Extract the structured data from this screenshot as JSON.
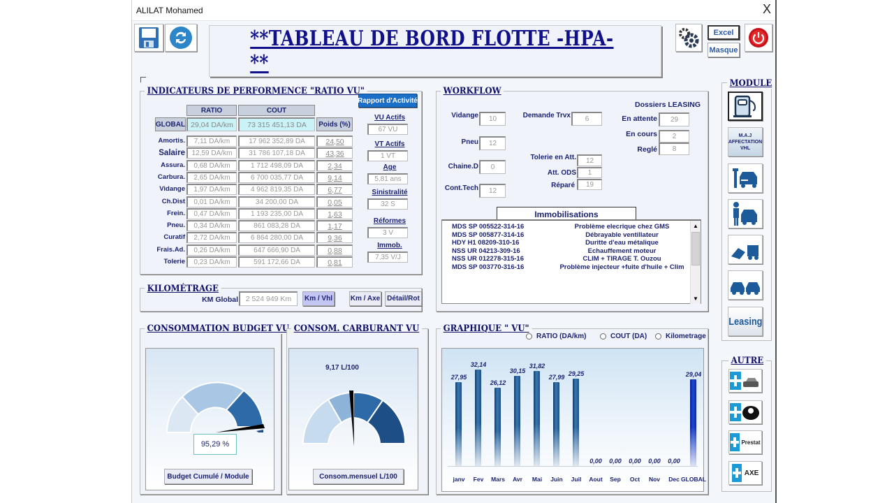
{
  "window": {
    "title": "ALILAT Mohamed",
    "close_label": "X"
  },
  "toolbar": {
    "excel_label": "Excel",
    "masque_label": "Masque"
  },
  "header": {
    "title": "**TABLEAU DE BORD FLOTTE -HPA- **"
  },
  "indicateurs": {
    "title": "INDICATEURS DE PERFORMENCE \"RATIO  VU\"",
    "rapport_label": "Rapport d'Activité",
    "col_ratio": "RATIO",
    "col_cout": "COUT",
    "col_poids": "Poids (%)",
    "global_label": "GLOBAL",
    "global_ratio": "29,04  DA/km",
    "global_cout": "73 315 451,13  DA",
    "rows": [
      {
        "label": "Amortis.",
        "ratio": "7,11  DA/km",
        "cout": "17 962 352,89  DA",
        "poids": "24,50"
      },
      {
        "label": "Salaire",
        "ratio": "12,59  DA/km",
        "cout": "31 786 107,18  DA",
        "poids": "43,36"
      },
      {
        "label": "Assura.",
        "ratio": "0,68  DA/km",
        "cout": "1 712 498,09  DA",
        "poids": "2,34"
      },
      {
        "label": "Carbura.",
        "ratio": "2,65  DA/km",
        "cout": "6 700 035,77  DA",
        "poids": "9,14"
      },
      {
        "label": "Vidange",
        "ratio": "1,97  DA/km",
        "cout": "4 962 819,35  DA",
        "poids": "6,77"
      },
      {
        "label": "Ch.Dist",
        "ratio": "0,01  DA/km",
        "cout": "34 200,00  DA",
        "poids": "0,05"
      },
      {
        "label": "Frein.",
        "ratio": "0,47  DA/km",
        "cout": "1 193 235,00  DA",
        "poids": "1,63"
      },
      {
        "label": "Pneu.",
        "ratio": "0,34  DA/km",
        "cout": "861 083,28  DA",
        "poids": "1,17"
      },
      {
        "label": "Curatif",
        "ratio": "2,72  DA/km",
        "cout": "6 864 280,00  DA",
        "poids": "9,36"
      },
      {
        "label": "Frais.Ad.",
        "ratio": "0,26  DA/km",
        "cout": "647 666,90  DA",
        "poids": "0,88"
      },
      {
        "label": "Tolerie",
        "ratio": "0,23  DA/km",
        "cout": "591 172,66  DA",
        "poids": "0,81"
      }
    ],
    "stats": [
      {
        "label": "VU Actifs",
        "value": "67  VU"
      },
      {
        "label": "VT Actifs",
        "value": "1  VT"
      },
      {
        "label": "Age",
        "value": "5,81  ans"
      },
      {
        "label": "Sinistralité",
        "value": "32  S"
      },
      {
        "label": "Réformes",
        "value": "3  V"
      },
      {
        "label": "Immob.",
        "value": "7,35  V/J"
      }
    ]
  },
  "kilometrage": {
    "title": "KILOMÉTRAGE",
    "km_global_label": "KM Global",
    "km_global_value": "2 524 949  Km",
    "btn_km_vhl": "Km / Vhl",
    "btn_km_axe": "Km / Axe",
    "btn_detail_rot": "Détail/Rot"
  },
  "workflow": {
    "title": "WORKFLOW",
    "vidange_label": "Vidange",
    "vidange": "10",
    "pneu_label": "Pneu",
    "pneu": "12",
    "chaine_label": "Chaine.D",
    "chaine": "0",
    "conttech_label": "Cont.Tech",
    "conttech": "12",
    "demande_label": "Demande Trvx",
    "demande": "6",
    "tolerie_label": "Tolerie en Att.",
    "tolerie": "12",
    "attods_label": "Att. ODS",
    "attods": "1",
    "repare_label": "Réparé",
    "repare": "19",
    "leasing_title": "Dossiers LEASING",
    "attente_label": "En attente",
    "attente": "29",
    "encours_label": "En cours",
    "encours": "2",
    "regle_label": "Reglé",
    "regle": "8"
  },
  "immobilisations": {
    "title": "Immobilisations",
    "rows": [
      {
        "plate": "MDS SP 005522-314-16",
        "desc": "Problème elecrique  chez GMS"
      },
      {
        "plate": "MDS SP 005877-314-16",
        "desc": "Débrayable ventillateur"
      },
      {
        "plate": "HDY H1 08209-310-16",
        "desc": "Duritte d'eau métalique"
      },
      {
        "plate": "NSS UR 04213-309-16",
        "desc": "Echauffement moteur"
      },
      {
        "plate": "NSS UR 012278-315-16",
        "desc": "CLIM + TIRAGE   T. Ouzou"
      },
      {
        "plate": "MDS SP 003770-316-16",
        "desc": "Problème injecteur +fuite d'huile + Clim"
      }
    ]
  },
  "budget": {
    "title": "CONSOMMATION BUDGET  VU",
    "value": "95,29  %",
    "button": "Budget Cumulé / Module"
  },
  "carburant": {
    "title": "CONSOM. CARBURANT VU",
    "value": "9,17 L/100",
    "button": "Consom.mensuel  L/100"
  },
  "graphique": {
    "title": "GRAPHIQUE \" VU\"",
    "radio_ratio": "RATIO (DA/km)",
    "radio_cout": "COUT (DA)",
    "radio_km": "Kilometrage"
  },
  "module": {
    "title": "MODULE",
    "maj_label": "M.A.J AFFECTATION VHL",
    "leasing_label": "Leasing"
  },
  "autre": {
    "title": "AUTRE",
    "prestat_label": "Prestat",
    "axe_label": "AXE"
  },
  "chart_data": {
    "type": "bar",
    "title": "GRAPHIQUE \" VU\"",
    "categories": [
      "janv",
      "Fev",
      "Mars",
      "Avr",
      "Mai",
      "Juin",
      "Juil",
      "Aout",
      "Sep",
      "Oct",
      "Nov",
      "Dec",
      "GLOBAL"
    ],
    "values": [
      27.95,
      32.14,
      26.12,
      30.15,
      31.82,
      27.99,
      29.25,
      0,
      0,
      0,
      0,
      0,
      29.04
    ],
    "labels": [
      "27,95",
      "32,14",
      "26,12",
      "30,15",
      "31,82",
      "27,99",
      "29,25",
      "0,00",
      "0,00",
      "0,00",
      "0,00",
      "0,00",
      "29,04"
    ],
    "xlabel": "",
    "ylabel": "RATIO (DA/km)",
    "ylim": [
      0,
      35
    ],
    "grid": false,
    "legend": "none"
  },
  "colors": {
    "title_blue": "#10108a",
    "label_navy": "#1c2270",
    "accent_blue": "#1a6fc9",
    "header_cyan": "#c9f3f6"
  }
}
